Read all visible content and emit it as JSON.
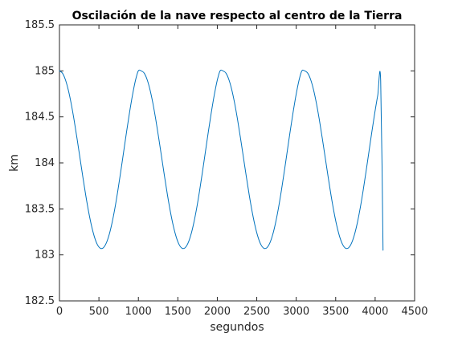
{
  "chart_data": {
    "type": "line",
    "title": "Oscilación de la nave respecto al centro de la Tierra",
    "xlabel": "segundos",
    "ylabel": "km",
    "xlim": [
      0,
      4500
    ],
    "ylim": [
      182.5,
      185.5
    ],
    "xticks": [
      0,
      500,
      1000,
      1500,
      2000,
      2500,
      3000,
      3500,
      4000,
      4500
    ],
    "yticks": [
      182.5,
      183,
      183.5,
      184,
      184.5,
      185,
      185.5
    ],
    "grid": false,
    "series": [
      {
        "color": "#0072BD",
        "x": [
          0,
          37,
          74,
          111,
          148,
          185,
          222,
          259,
          296,
          333,
          370,
          407,
          444,
          481,
          518,
          555,
          592,
          629,
          666,
          703,
          740,
          777,
          814,
          851,
          888,
          925,
          962,
          999,
          1036,
          1073,
          1110,
          1147,
          1184,
          1221,
          1258,
          1295,
          1332,
          1369,
          1406,
          1443,
          1480,
          1517,
          1554,
          1591,
          1628,
          1665,
          1702,
          1739,
          1776,
          1813,
          1850,
          1887,
          1924,
          1961,
          1998,
          2035,
          2072,
          2109,
          2146,
          2183,
          2220,
          2257,
          2294,
          2331,
          2368,
          2405,
          2442,
          2479,
          2516,
          2553,
          2590,
          2627,
          2664,
          2701,
          2738,
          2775,
          2812,
          2849,
          2886,
          2923,
          2960,
          2997,
          3034,
          3071,
          3108,
          3145,
          3182,
          3219,
          3256,
          3293,
          3330,
          3367,
          3404,
          3441,
          3478,
          3515,
          3552,
          3589,
          3626,
          3663,
          3700,
          3737,
          3774,
          3811,
          3848,
          3885,
          3922,
          3959,
          3996,
          4033,
          4070,
          4100
        ],
        "y": [
          185.0,
          184.976,
          184.907,
          184.796,
          184.647,
          184.468,
          184.269,
          184.059,
          183.849,
          183.648,
          183.467,
          183.313,
          183.193,
          183.111,
          183.072,
          183.077,
          183.126,
          183.217,
          183.347,
          183.51,
          183.7,
          183.908,
          184.125,
          184.342,
          184.548,
          184.735,
          184.893,
          185.0,
          185.0,
          184.976,
          184.907,
          184.796,
          184.647,
          184.468,
          184.269,
          184.059,
          183.849,
          183.648,
          183.467,
          183.313,
          183.193,
          183.111,
          183.072,
          183.077,
          183.126,
          183.217,
          183.347,
          183.51,
          183.7,
          183.908,
          184.125,
          184.342,
          184.548,
          184.735,
          184.893,
          185.0,
          185.0,
          184.976,
          184.907,
          184.796,
          184.647,
          184.468,
          184.269,
          184.059,
          183.849,
          183.648,
          183.467,
          183.313,
          183.193,
          183.111,
          183.072,
          183.077,
          183.126,
          183.217,
          183.347,
          183.51,
          183.7,
          183.908,
          184.125,
          184.342,
          184.548,
          184.735,
          184.893,
          185.0,
          185.0,
          184.976,
          184.907,
          184.796,
          184.647,
          184.468,
          184.269,
          184.059,
          183.849,
          183.648,
          183.467,
          183.313,
          183.193,
          183.111,
          183.072,
          183.077,
          183.126,
          183.217,
          183.347,
          183.51,
          183.7,
          183.908,
          184.125,
          184.342,
          184.548,
          184.735,
          184.893,
          183.05
        ]
      }
    ]
  }
}
